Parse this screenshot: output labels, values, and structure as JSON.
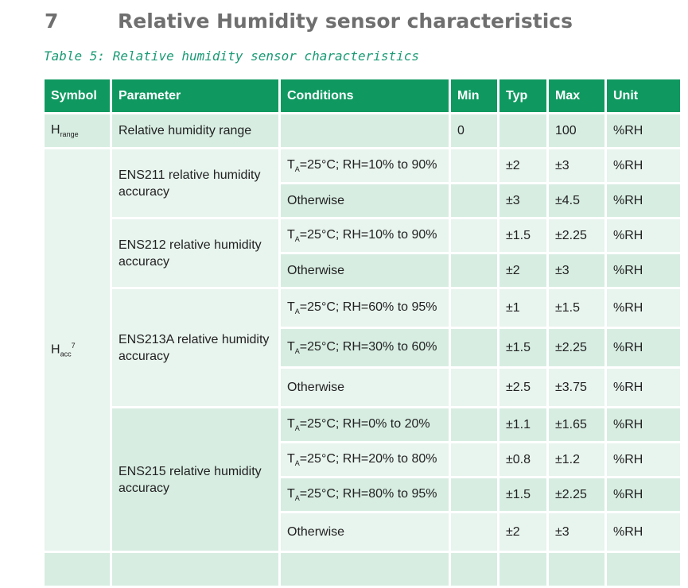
{
  "section": {
    "number": "7",
    "title": "Relative Humidity sensor characteristics"
  },
  "caption": "Table 5: Relative humidity sensor characteristics",
  "headers": [
    "Symbol",
    "Parameter",
    "Conditions",
    "Min",
    "Typ",
    "Max",
    "Unit"
  ],
  "range_row": {
    "symbol": "H",
    "symbol_sub": "range",
    "parameter": "Relative humidity range",
    "conditions": "",
    "min": "0",
    "typ": "",
    "max": "100",
    "unit": "%RH"
  },
  "acc": {
    "symbol": "H",
    "symbol_sub": "acc",
    "symbol_sup": "7"
  },
  "groups": {
    "ens211": {
      "parameter": "ENS211 relative humidity accuracy"
    },
    "ens212": {
      "parameter": "ENS212 relative humidity accuracy"
    },
    "ens213a": {
      "parameter": "ENS213A relative humidity accuracy"
    },
    "ens215": {
      "parameter": "ENS215 relative humidity accuracy"
    }
  },
  "cond": {
    "ta": "T",
    "ta_sub": "A"
  },
  "rows": [
    {
      "cond_rest": "=25°C; RH=10% to 90%",
      "typ": "±2",
      "max": "±3",
      "unit": "%RH"
    },
    {
      "cond_text": "Otherwise",
      "typ": "±3",
      "max": "±4.5",
      "unit": "%RH"
    },
    {
      "cond_rest": "=25°C; RH=10% to 90%",
      "typ": "±1.5",
      "max": "±2.25",
      "unit": "%RH"
    },
    {
      "cond_text": "Otherwise",
      "typ": "±2",
      "max": "±3",
      "unit": "%RH"
    },
    {
      "cond_rest": "=25°C; RH=60% to 95%",
      "typ": "±1",
      "max": "±1.5",
      "unit": "%RH"
    },
    {
      "cond_rest": "=25°C; RH=30% to 60%",
      "typ": "±1.5",
      "max": "±2.25",
      "unit": "%RH"
    },
    {
      "cond_text": "Otherwise",
      "typ": "±2.5",
      "max": "±3.75",
      "unit": "%RH"
    },
    {
      "cond_rest": "=25°C; RH=0% to 20%",
      "typ": "±1.1",
      "max": "±1.65",
      "unit": "%RH"
    },
    {
      "cond_rest": "=25°C; RH=20% to 80%",
      "typ": "±0.8",
      "max": "±1.2",
      "unit": "%RH"
    },
    {
      "cond_rest": "=25°C; RH=80% to 95%",
      "typ": "±1.5",
      "max": "±2.25",
      "unit": "%RH"
    },
    {
      "cond_text": "Otherwise",
      "typ": "±2",
      "max": "±3",
      "unit": "%RH"
    }
  ],
  "colors": {
    "header_bg": "#0f9960",
    "row_light": "#e8f4ee",
    "row_dark": "#d7ede2",
    "caption": "#1a9a74"
  }
}
